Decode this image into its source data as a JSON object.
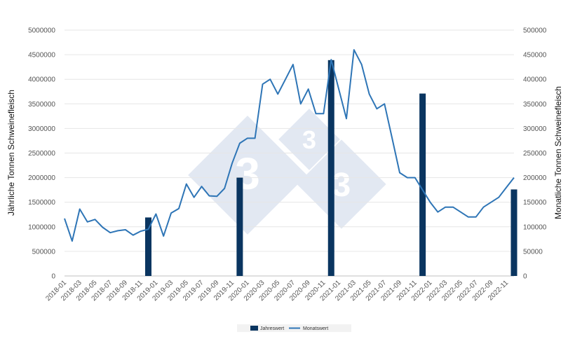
{
  "chart_data": {
    "type": "bar+line",
    "title": "",
    "xlabel": "",
    "ylabel_left": "Jährliche Tonnen Schweinefleisch",
    "ylabel_right": "Monatliche Tonnen Schweinefleisch",
    "ylim_left": [
      0,
      5000000
    ],
    "ylim_right": [
      0,
      500000
    ],
    "y_ticks_left": [
      "0",
      "500000",
      "1000000",
      "1500000",
      "2000000",
      "2500000",
      "3000000",
      "3500000",
      "4000000",
      "4500000",
      "5000000"
    ],
    "y_ticks_right": [
      "0",
      "50000",
      "100000",
      "150000",
      "200000",
      "250000",
      "300000",
      "350000",
      "400000",
      "450000",
      "500000"
    ],
    "months": [
      "2018-01",
      "2018-02",
      "2018-03",
      "2018-04",
      "2018-05",
      "2018-06",
      "2018-07",
      "2018-08",
      "2018-09",
      "2018-10",
      "2018-11",
      "2018-12",
      "2019-01",
      "2019-02",
      "2019-03",
      "2019-04",
      "2019-05",
      "2019-06",
      "2019-07",
      "2019-08",
      "2019-09",
      "2019-10",
      "2019-11",
      "2019-12",
      "2020-01",
      "2020-02",
      "2020-03",
      "2020-04",
      "2020-05",
      "2020-06",
      "2020-07",
      "2020-08",
      "2020-09",
      "2020-10",
      "2020-11",
      "2020-12",
      "2021-01",
      "2021-02",
      "2021-03",
      "2021-04",
      "2021-05",
      "2021-06",
      "2021-07",
      "2021-08",
      "2021-09",
      "2021-10",
      "2021-11",
      "2021-12",
      "2022-01",
      "2022-02",
      "2022-03",
      "2022-04",
      "2022-05",
      "2022-06",
      "2022-07",
      "2022-08",
      "2022-09",
      "2022-10",
      "2022-11",
      "2022-12"
    ],
    "x_tick_labels": [
      "2018-01",
      "2018-03",
      "2018-05",
      "2018-07",
      "2018-09",
      "2018-11",
      "2019-01",
      "2019-03",
      "2019-05",
      "2019-07",
      "2019-09",
      "2019-11",
      "2020-01",
      "2020-03",
      "2020-05",
      "2020-07",
      "2020-09",
      "2020-11",
      "2021-01",
      "2021-03",
      "2021-05",
      "2021-07",
      "2021-09",
      "2021-11",
      "2022-01",
      "2022-03",
      "2022-05",
      "2022-07",
      "2022-09",
      "2022-11"
    ],
    "series": [
      {
        "name": "Jahreswert",
        "type": "bar",
        "axis": "left",
        "color": "#0a3560",
        "points": [
          {
            "month": "2018-12",
            "value": 1190000
          },
          {
            "month": "2019-12",
            "value": 2000000
          },
          {
            "month": "2020-12",
            "value": 4390000
          },
          {
            "month": "2021-12",
            "value": 3710000
          },
          {
            "month": "2022-12",
            "value": 1760000
          }
        ]
      },
      {
        "name": "Monatswert",
        "type": "line",
        "axis": "right",
        "color": "#2e75b6",
        "values": [
          117000,
          71000,
          136000,
          110000,
          115000,
          99000,
          88000,
          92000,
          94000,
          83000,
          91000,
          95000,
          126000,
          81000,
          128000,
          137000,
          187000,
          160000,
          182000,
          163000,
          162000,
          178000,
          229000,
          270000,
          280000,
          280000,
          390000,
          400000,
          370000,
          400000,
          430000,
          350000,
          380000,
          330000,
          330000,
          440000,
          380000,
          320000,
          460000,
          430000,
          370000,
          340000,
          350000,
          280000,
          210000,
          200000,
          200000,
          175000,
          150000,
          130000,
          140000,
          140000,
          130000,
          120000,
          120000,
          140000,
          150000,
          160000,
          180000,
          200000
        ]
      }
    ]
  }
}
